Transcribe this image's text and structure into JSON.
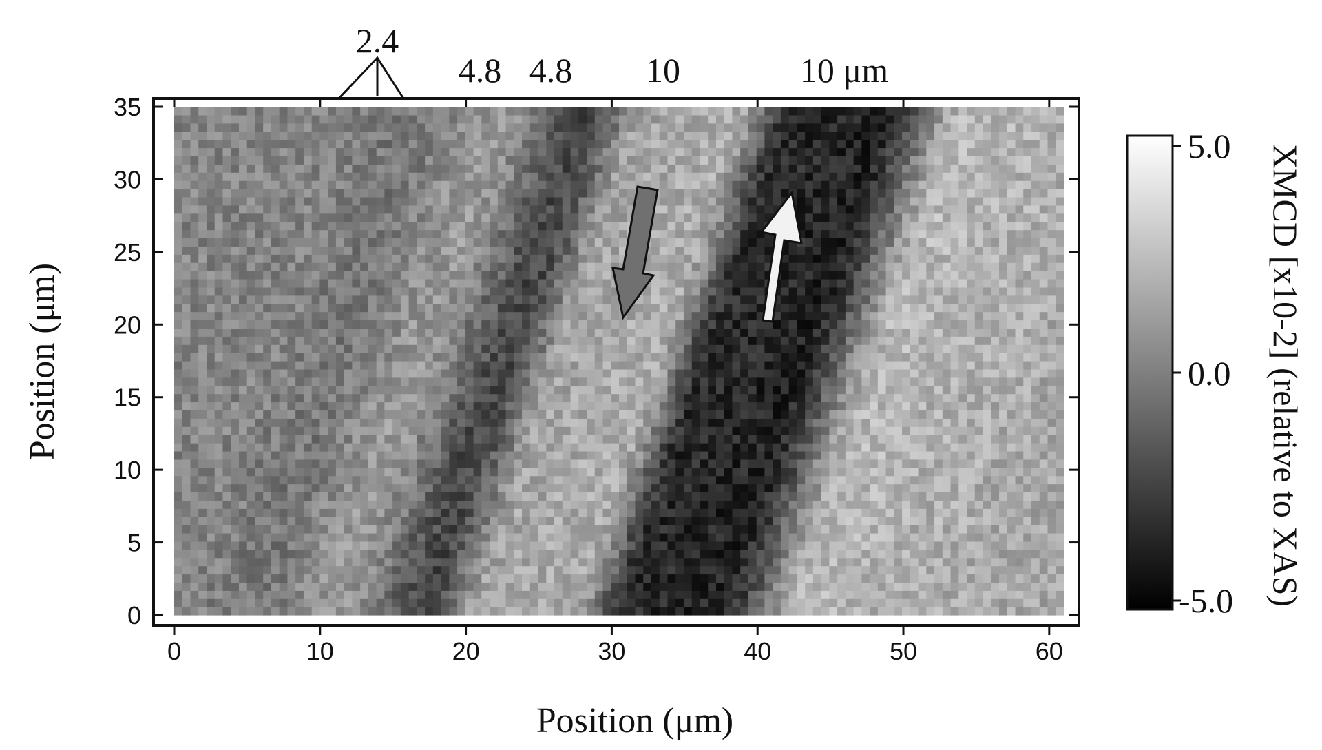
{
  "chart_data": {
    "type": "heatmap",
    "title": "",
    "xlabel": "Position (μm)",
    "ylabel": "Position (μm)",
    "xlim": [
      0,
      61
    ],
    "ylim": [
      0,
      35
    ],
    "x_ticks": [
      "0",
      "10",
      "20",
      "30",
      "40",
      "50",
      "60"
    ],
    "y_ticks": [
      "0",
      "5",
      "10",
      "15",
      "20",
      "25",
      "30",
      "35"
    ],
    "grid": false,
    "colormap": "grayscale (black = -5.0, white = 5.0)",
    "colorbar": {
      "label": "XMCD [x10-2] (relative to XAS)",
      "min": -5.0,
      "max": 5.0,
      "ticks": [
        "5.0",
        "0.0",
        "-5.0"
      ],
      "low_color": "#000000",
      "high_color": "#ffffff"
    },
    "stripe_annotations": [
      "2.4",
      "4.8",
      "4.8",
      "10",
      "10 μm"
    ],
    "magnetization_arrows": [
      {
        "direction": "down",
        "color": "#707070"
      },
      {
        "direction": "up",
        "color": "#f2f2f2"
      }
    ],
    "stripe_pattern_xmcd": {
      "x_at_y0": [
        0,
        5,
        11,
        17,
        21,
        27,
        31,
        37,
        43,
        50,
        55,
        61
      ],
      "xmcd_values": [
        0.2,
        -0.3,
        1.0,
        -2.2,
        1.5,
        1.8,
        -3.3,
        -3.6,
        2.2,
        1.9,
        1.6,
        1.5
      ],
      "tilt_x_per_y": 0.33
    }
  }
}
